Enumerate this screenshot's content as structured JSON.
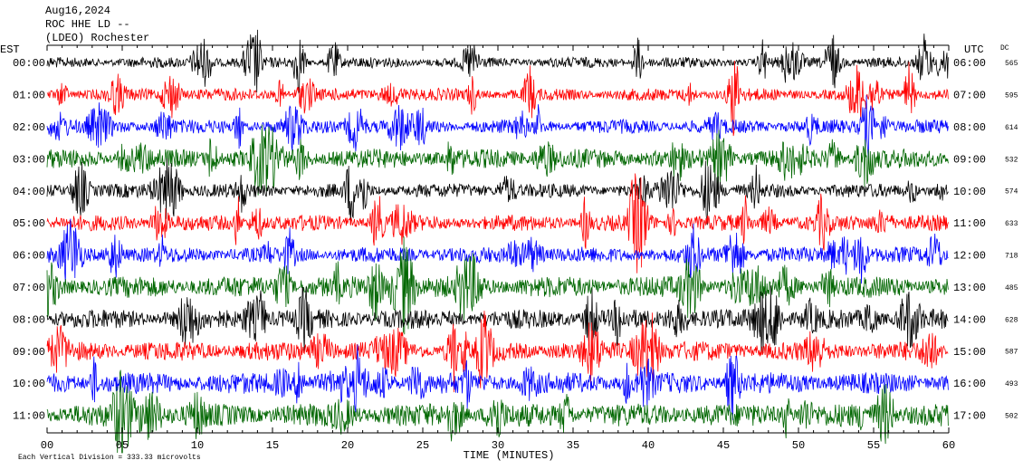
{
  "header": {
    "lines": [
      "Aug16,2024",
      "ROC HHE LD --",
      "(LDEO) Rochester"
    ]
  },
  "left_axis": {
    "title": "EST",
    "labels": [
      "00:00",
      "01:00",
      "02:00",
      "03:00",
      "04:00",
      "05:00",
      "06:00",
      "07:00",
      "08:00",
      "09:00",
      "10:00",
      "11:00"
    ]
  },
  "right_axis": {
    "title": "UTC",
    "labels": [
      "06:00",
      "07:00",
      "08:00",
      "09:00",
      "10:00",
      "11:00",
      "12:00",
      "13:00",
      "14:00",
      "15:00",
      "16:00",
      "17:00"
    ]
  },
  "dc": {
    "title": "DC",
    "values": [
      565,
      595,
      614,
      532,
      574,
      633,
      718,
      485,
      628,
      587,
      493,
      502
    ]
  },
  "x_axis": {
    "title": "TIME (MINUTES)",
    "ticks": [
      "00",
      "05",
      "10",
      "15",
      "20",
      "25",
      "30",
      "35",
      "40",
      "45",
      "50",
      "55",
      "60"
    ]
  },
  "footer": "Each Vertical Division =  333.33 microvolts",
  "trace_colors": [
    "#000000",
    "#ff0000",
    "#0000ff",
    "#006600"
  ]
}
